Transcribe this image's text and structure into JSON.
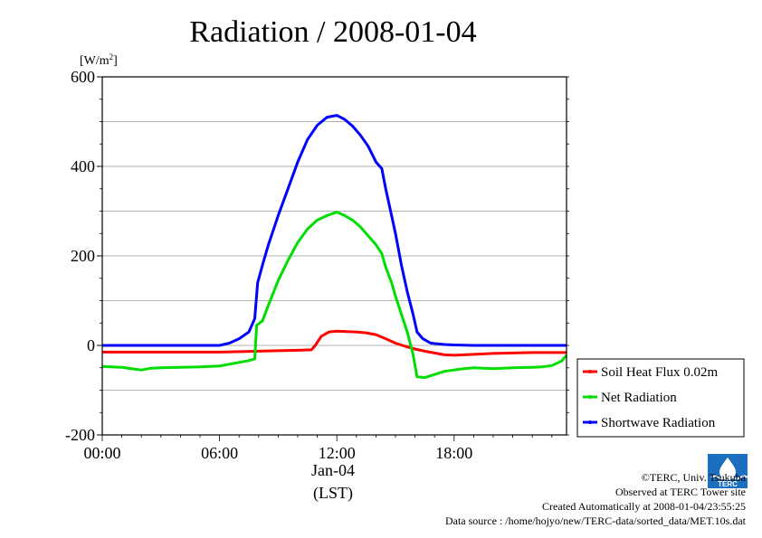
{
  "chart_data": {
    "type": "line",
    "title": "Radiation / 2008-01-04",
    "ylabel": "[W/m2]",
    "ylabel_base": "[W/m",
    "ylabel_sup": "2",
    "ylabel_end": "]",
    "ylim": [
      -200,
      600
    ],
    "yticks": [
      -200,
      0,
      200,
      400,
      600
    ],
    "xlim": [
      0,
      23.75
    ],
    "xticks": [
      {
        "x": 0,
        "label": "00:00"
      },
      {
        "x": 6,
        "label": "06:00"
      },
      {
        "x": 12,
        "label": "12:00"
      },
      {
        "x": 18,
        "label": "18:00"
      }
    ],
    "date_label": "Jan-04",
    "xlabel": "(LST)",
    "grid": true,
    "legend_position": "right",
    "series": [
      {
        "name": "Soil Heat Flux 0.02m",
        "color": "#ff0000",
        "points": [
          [
            0,
            -15
          ],
          [
            2,
            -15
          ],
          [
            4,
            -15
          ],
          [
            6,
            -15
          ],
          [
            7,
            -14
          ],
          [
            8,
            -13
          ],
          [
            9,
            -12
          ],
          [
            10,
            -11
          ],
          [
            10.7,
            -10
          ],
          [
            10.9,
            0
          ],
          [
            11.2,
            20
          ],
          [
            11.6,
            30
          ],
          [
            12,
            32
          ],
          [
            12.5,
            31
          ],
          [
            13,
            30
          ],
          [
            13.5,
            28
          ],
          [
            14,
            24
          ],
          [
            14.5,
            15
          ],
          [
            15,
            5
          ],
          [
            15.5,
            -2
          ],
          [
            16,
            -8
          ],
          [
            16.5,
            -13
          ],
          [
            17,
            -17
          ],
          [
            17.5,
            -21
          ],
          [
            18,
            -22
          ],
          [
            19,
            -20
          ],
          [
            20,
            -18
          ],
          [
            21,
            -17
          ],
          [
            22,
            -16
          ],
          [
            23,
            -16
          ],
          [
            23.75,
            -16
          ]
        ]
      },
      {
        "name": "Net Radiation",
        "color": "#00dd00",
        "points": [
          [
            0,
            -47
          ],
          [
            0.5,
            -48
          ],
          [
            1,
            -49
          ],
          [
            1.5,
            -52
          ],
          [
            2,
            -55
          ],
          [
            2.5,
            -51
          ],
          [
            3,
            -50
          ],
          [
            4,
            -49
          ],
          [
            5,
            -48
          ],
          [
            5.5,
            -47
          ],
          [
            6,
            -46
          ],
          [
            6.5,
            -42
          ],
          [
            7,
            -38
          ],
          [
            7.5,
            -34
          ],
          [
            7.8,
            -30
          ],
          [
            7.9,
            45
          ],
          [
            8.2,
            55
          ],
          [
            8.5,
            90
          ],
          [
            9,
            145
          ],
          [
            9.5,
            190
          ],
          [
            10,
            230
          ],
          [
            10.5,
            260
          ],
          [
            11,
            280
          ],
          [
            11.5,
            290
          ],
          [
            12,
            298
          ],
          [
            12.4,
            290
          ],
          [
            12.8,
            280
          ],
          [
            13.2,
            265
          ],
          [
            13.6,
            245
          ],
          [
            14,
            225
          ],
          [
            14.3,
            205
          ],
          [
            14.5,
            175
          ],
          [
            14.8,
            140
          ],
          [
            15,
            110
          ],
          [
            15.3,
            70
          ],
          [
            15.6,
            30
          ],
          [
            15.9,
            -20
          ],
          [
            16.1,
            -70
          ],
          [
            16.5,
            -72
          ],
          [
            17,
            -65
          ],
          [
            17.5,
            -58
          ],
          [
            18,
            -55
          ],
          [
            18.5,
            -52
          ],
          [
            19,
            -50
          ],
          [
            20,
            -52
          ],
          [
            21,
            -50
          ],
          [
            22,
            -49
          ],
          [
            22.5,
            -48
          ],
          [
            23,
            -45
          ],
          [
            23.5,
            -35
          ],
          [
            23.75,
            -22
          ]
        ]
      },
      {
        "name": "Shortwave Radiation",
        "color": "#0000ff",
        "points": [
          [
            0,
            0
          ],
          [
            1,
            0
          ],
          [
            2,
            0
          ],
          [
            3,
            0
          ],
          [
            4,
            0
          ],
          [
            5,
            0
          ],
          [
            6,
            0
          ],
          [
            6.5,
            5
          ],
          [
            7,
            15
          ],
          [
            7.5,
            30
          ],
          [
            7.8,
            60
          ],
          [
            7.95,
            140
          ],
          [
            8.2,
            180
          ],
          [
            8.5,
            225
          ],
          [
            9,
            290
          ],
          [
            9.5,
            350
          ],
          [
            10,
            410
          ],
          [
            10.5,
            460
          ],
          [
            11,
            492
          ],
          [
            11.5,
            510
          ],
          [
            12,
            514
          ],
          [
            12.4,
            505
          ],
          [
            12.8,
            490
          ],
          [
            13.2,
            470
          ],
          [
            13.6,
            445
          ],
          [
            14,
            410
          ],
          [
            14.3,
            395
          ],
          [
            14.5,
            350
          ],
          [
            14.8,
            290
          ],
          [
            15,
            250
          ],
          [
            15.3,
            180
          ],
          [
            15.6,
            120
          ],
          [
            15.9,
            70
          ],
          [
            16.1,
            30
          ],
          [
            16.4,
            15
          ],
          [
            16.8,
            5
          ],
          [
            17.5,
            2
          ],
          [
            18,
            1
          ],
          [
            19,
            0
          ],
          [
            20,
            0
          ],
          [
            21,
            0
          ],
          [
            22,
            0
          ],
          [
            23,
            0
          ],
          [
            23.75,
            0
          ]
        ]
      }
    ]
  },
  "credits": {
    "copyright": "©TERC, Univ. Tsukuba",
    "site": "Observed at TERC Tower site",
    "created": "Created Automatically at 2008-01-04/23:55:25",
    "source": "Data source : /home/hojyo/new/TERC-data/sorted_data/MET.10s.dat"
  },
  "logo_text": "TERC",
  "colors": {
    "grid": "#999999",
    "logo": "#1a6fc0"
  }
}
